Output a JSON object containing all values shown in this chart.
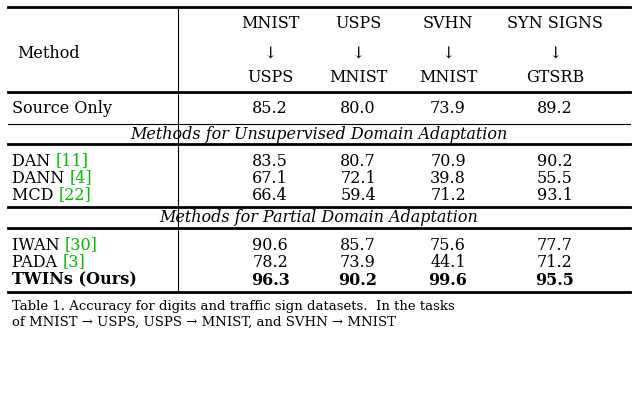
{
  "figsize": [
    6.4,
    4.19
  ],
  "dpi": 100,
  "background_color": "#ffffff",
  "header_top": [
    "MNIST",
    "USPS",
    "SVHN",
    "SYN SIGNS"
  ],
  "header_bottom": [
    "USPS",
    "MNIST",
    "MNIST",
    "GTSRB"
  ],
  "col_label": "Method",
  "rows": [
    {
      "method_plain": "Source Only",
      "method_parts": null,
      "values": [
        "85.2",
        "80.0",
        "73.9",
        "89.2"
      ],
      "bold": false,
      "section_before": null
    },
    {
      "method_plain": null,
      "method_parts": null,
      "values": null,
      "bold": false,
      "section_before": "Methods for Unsupervised Domain Adaptation"
    },
    {
      "method_plain": null,
      "method_parts": [
        [
          "DAN ",
          "#000000"
        ],
        [
          "[11]",
          "#00cc00"
        ]
      ],
      "values": [
        "83.5",
        "80.7",
        "70.9",
        "90.2"
      ],
      "bold": false,
      "section_before": null
    },
    {
      "method_plain": null,
      "method_parts": [
        [
          "DANN ",
          "#000000"
        ],
        [
          "[4]",
          "#00cc00"
        ]
      ],
      "values": [
        "67.1",
        "72.1",
        "39.8",
        "55.5"
      ],
      "bold": false,
      "section_before": null
    },
    {
      "method_plain": null,
      "method_parts": [
        [
          "MCD ",
          "#000000"
        ],
        [
          "[22]",
          "#00cc00"
        ]
      ],
      "values": [
        "66.4",
        "59.4",
        "71.2",
        "93.1"
      ],
      "bold": false,
      "section_before": null
    },
    {
      "method_plain": null,
      "method_parts": null,
      "values": null,
      "bold": false,
      "section_before": "Methods for Partial Domain Adaptation"
    },
    {
      "method_plain": null,
      "method_parts": [
        [
          "IWAN ",
          "#000000"
        ],
        [
          "[30]",
          "#00cc00"
        ]
      ],
      "values": [
        "90.6",
        "85.7",
        "75.6",
        "77.7"
      ],
      "bold": false,
      "section_before": null
    },
    {
      "method_plain": null,
      "method_parts": [
        [
          "PADA ",
          "#000000"
        ],
        [
          "[3]",
          "#00cc00"
        ]
      ],
      "values": [
        "78.2",
        "73.9",
        "44.1",
        "71.2"
      ],
      "bold": false,
      "section_before": null
    },
    {
      "method_plain": "TWINs (Ours)",
      "method_parts": null,
      "values": [
        "96.3",
        "90.2",
        "99.6",
        "95.5"
      ],
      "bold": true,
      "section_before": null
    }
  ],
  "caption_line1": "Table 1. Accuracy for digits and traffic sign datasets.  In the tasks",
  "caption_line2": "of MNIST → USPS, USPS → MNIST, and SVHN → MNIST",
  "green_color": "#00bb00",
  "thick_lw": 2.0,
  "thin_lw": 0.8,
  "fontsize_main": 11.5,
  "fontsize_caption": 9.5
}
